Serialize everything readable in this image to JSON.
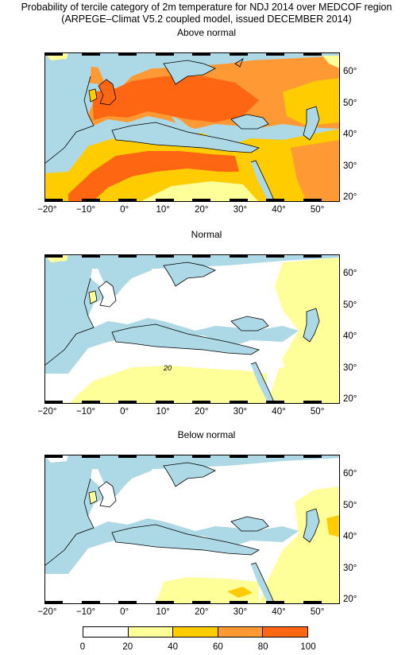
{
  "title_line1": "Probability of tercile category of 2m temperature for NDJ 2014 over MEDCOF region",
  "title_line2": "(ARPEGE–Climat V5.2 coupled model, issued DECEMBER 2014)",
  "panels": [
    {
      "name": "Above normal"
    },
    {
      "name": "Normal",
      "contour_label": "20"
    },
    {
      "name": "Below normal"
    }
  ],
  "lon_labels": [
    "−20°",
    "−10°",
    "0°",
    "10°",
    "20°",
    "30°",
    "40°",
    "50°"
  ],
  "lat_labels": [
    "60°",
    "50°",
    "40°",
    "30°",
    "20°"
  ],
  "legend": {
    "labels": [
      "0",
      "20",
      "40",
      "60",
      "80",
      "100"
    ],
    "colors": [
      "#ffffff",
      "#ffff99",
      "#ffcc00",
      "#ff9933",
      "#ff6611"
    ]
  },
  "colors": {
    "sea": "#add8e6",
    "white": "#ffffff",
    "lightyellow": "#ffff99",
    "yellow": "#ffcc00",
    "orange": "#ff9933",
    "darkorange": "#ff6611"
  }
}
